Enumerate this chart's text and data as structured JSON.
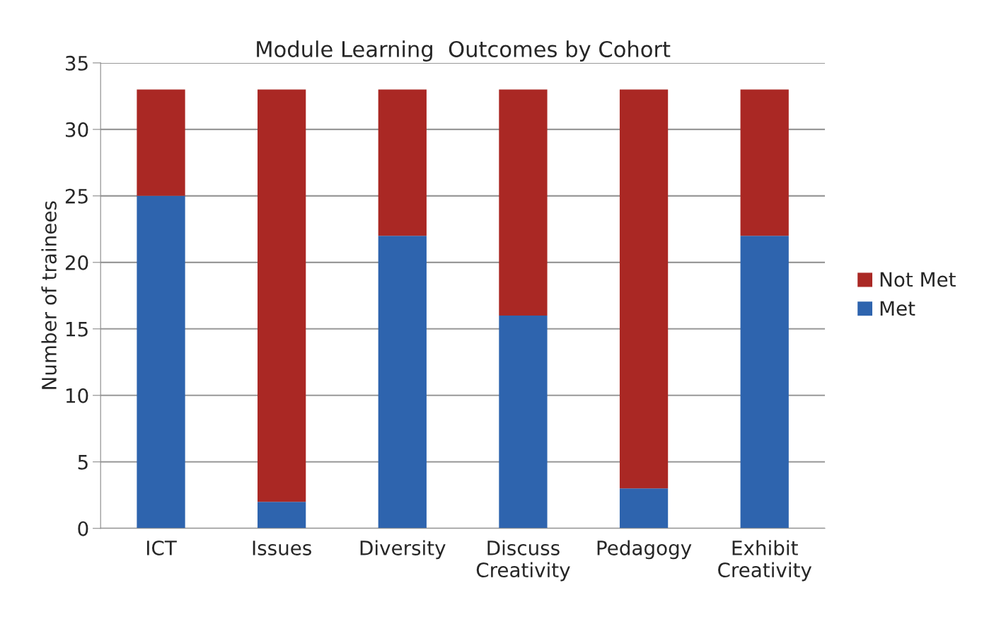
{
  "chart_data": {
    "type": "bar",
    "title": "Module Learning  Outcomes by Cohort",
    "ylabel": "Number of trainees",
    "categories": [
      "ICT",
      "Issues",
      "Diversity",
      "Discuss\nCreativity",
      "Pedagogy",
      "Exhibit\nCreativity"
    ],
    "series": [
      {
        "name": "Met",
        "color": "#2e64ae",
        "values": [
          25,
          2,
          22,
          16,
          3,
          22
        ]
      },
      {
        "name": "Not Met",
        "color": "#aa2824",
        "values": [
          8,
          31,
          11,
          17,
          30,
          11
        ]
      }
    ],
    "stacked": true,
    "ylim": [
      0,
      35
    ],
    "yticks": [
      0,
      5,
      10,
      15,
      20,
      25,
      30,
      35
    ],
    "grid": "y",
    "legend": "right"
  }
}
